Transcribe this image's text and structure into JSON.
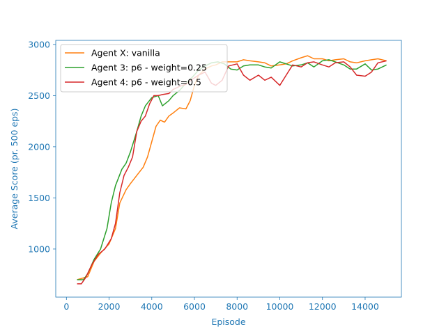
{
  "chart_data": {
    "type": "line",
    "title": "",
    "xlabel": "Episode",
    "ylabel": "Average Score (pr. 500 eps)",
    "xlim": [
      -500,
      15700
    ],
    "ylim": [
      530,
      3040
    ],
    "xticks": [
      0,
      2000,
      4000,
      6000,
      8000,
      10000,
      12000,
      14000
    ],
    "yticks": [
      1000,
      1500,
      2000,
      2500,
      3000
    ],
    "legend": "top-left",
    "grid": false,
    "axis_color": "#1f77b4",
    "series": [
      {
        "name": "Agent X: vanilla",
        "color": "#ff7f0e",
        "x": [
          500,
          1000,
          1300,
          1600,
          2000,
          2300,
          2500,
          2800,
          3000,
          3300,
          3600,
          3800,
          4000,
          4200,
          4400,
          4600,
          4800,
          5000,
          5300,
          5600,
          5800,
          6000,
          6200,
          6500,
          6800,
          7000,
          7300,
          7600,
          8000,
          8300,
          8600,
          9000,
          9300,
          9600,
          10000,
          10300,
          10600,
          11000,
          11300,
          11600,
          12000,
          12300,
          12600,
          13000,
          13300,
          13600,
          14000,
          14300,
          14600,
          15000
        ],
        "y": [
          700,
          730,
          880,
          960,
          1050,
          1200,
          1450,
          1580,
          1640,
          1720,
          1800,
          1900,
          2050,
          2200,
          2260,
          2240,
          2300,
          2330,
          2380,
          2370,
          2450,
          2600,
          2700,
          2760,
          2790,
          2800,
          2830,
          2830,
          2830,
          2850,
          2840,
          2830,
          2820,
          2790,
          2800,
          2810,
          2840,
          2870,
          2890,
          2860,
          2860,
          2840,
          2850,
          2860,
          2830,
          2820,
          2840,
          2850,
          2860,
          2840
        ]
      },
      {
        "name": "Agent 3: p6 - weight=0.25",
        "color": "#2ca02c",
        "x": [
          500,
          800,
          1000,
          1300,
          1600,
          1900,
          2100,
          2300,
          2600,
          2800,
          3000,
          3300,
          3500,
          3700,
          4000,
          4300,
          4500,
          4800,
          5000,
          5300,
          5600,
          5900,
          6200,
          6500,
          6800,
          7100,
          7400,
          7700,
          8000,
          8300,
          8600,
          9000,
          9300,
          9600,
          10000,
          10300,
          10600,
          11000,
          11300,
          11600,
          12000,
          12300,
          12600,
          13000,
          13300,
          13600,
          14000,
          14300,
          14600,
          15000
        ],
        "y": [
          700,
          700,
          760,
          900,
          1000,
          1200,
          1450,
          1620,
          1780,
          1840,
          1950,
          2150,
          2300,
          2400,
          2480,
          2500,
          2400,
          2450,
          2500,
          2550,
          2620,
          2680,
          2750,
          2790,
          2820,
          2830,
          2810,
          2760,
          2750,
          2790,
          2800,
          2800,
          2780,
          2770,
          2830,
          2810,
          2790,
          2800,
          2820,
          2780,
          2840,
          2850,
          2830,
          2800,
          2760,
          2760,
          2810,
          2750,
          2760,
          2800
        ]
      },
      {
        "name": "Agent 4: p6 - weight=0.5",
        "color": "#d62728",
        "x": [
          500,
          700,
          900,
          1200,
          1500,
          1800,
          2100,
          2300,
          2500,
          2700,
          2900,
          3100,
          3300,
          3500,
          3700,
          3900,
          4100,
          4300,
          4500,
          4800,
          5000,
          5300,
          5600,
          5900,
          6200,
          6500,
          6800,
          7000,
          7300,
          7600,
          8000,
          8300,
          8600,
          9000,
          9300,
          9600,
          10000,
          10300,
          10600,
          11000,
          11300,
          11600,
          12000,
          12300,
          12600,
          13000,
          13300,
          13600,
          14000,
          14300,
          14600,
          15000
        ],
        "y": [
          660,
          660,
          720,
          850,
          950,
          1000,
          1100,
          1250,
          1550,
          1720,
          1800,
          1900,
          2150,
          2250,
          2300,
          2420,
          2500,
          2500,
          2510,
          2520,
          2560,
          2590,
          2610,
          2660,
          2700,
          2730,
          2620,
          2600,
          2650,
          2790,
          2810,
          2700,
          2650,
          2700,
          2650,
          2680,
          2600,
          2700,
          2800,
          2780,
          2820,
          2830,
          2800,
          2780,
          2820,
          2830,
          2780,
          2700,
          2690,
          2730,
          2820,
          2840
        ]
      }
    ]
  }
}
